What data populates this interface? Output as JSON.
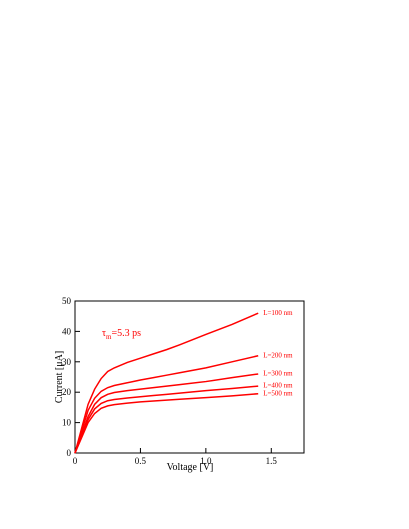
{
  "chart_data": {
    "type": "line",
    "annotation": {
      "symbol": "τ",
      "subscript": "m",
      "text": "=5.3 ps"
    },
    "x_label": "Voltage [V]",
    "y_label": "Current [μA]",
    "x": [
      0,
      0.05,
      0.1,
      0.15,
      0.2,
      0.25,
      0.3,
      0.4,
      0.5,
      0.6,
      0.7,
      0.8,
      1.0,
      1.2,
      1.4
    ],
    "series": [
      {
        "name": "L=100 nm",
        "color": "#ff0000",
        "values": [
          0,
          8,
          16,
          21,
          24.5,
          26.8,
          28,
          29.8,
          31.2,
          32.6,
          34,
          35.6,
          39,
          42.3,
          46
        ]
      },
      {
        "name": "L=200 nm",
        "color": "#ff0000",
        "values": [
          0,
          7,
          14,
          18,
          20.3,
          21.5,
          22.2,
          23.1,
          24,
          24.8,
          25.6,
          26.4,
          28,
          30,
          32
        ]
      },
      {
        "name": "L=300 nm",
        "color": "#ff0000",
        "values": [
          0,
          6,
          12,
          16,
          18.2,
          19.3,
          19.9,
          20.5,
          21,
          21.5,
          22,
          22.5,
          23.5,
          24.8,
          26
        ]
      },
      {
        "name": "L=400 nm",
        "color": "#ff0000",
        "values": [
          0,
          5.5,
          11,
          14.5,
          16.3,
          17.2,
          17.6,
          18.1,
          18.5,
          18.9,
          19.3,
          19.7,
          20.5,
          21.2,
          22
        ]
      },
      {
        "name": "L=500 nm",
        "color": "#ff0000",
        "values": [
          0,
          5,
          10,
          13,
          14.7,
          15.5,
          15.9,
          16.4,
          16.8,
          17.1,
          17.4,
          17.7,
          18.2,
          18.8,
          19.5
        ]
      }
    ],
    "xlim": [
      0,
      1.75
    ],
    "xticks": [
      0,
      0.5,
      {
        "value": 1,
        "label": "1.0"
      },
      1.5
    ],
    "ylim": [
      0,
      50
    ],
    "yticks": [
      0,
      10,
      20,
      30,
      40,
      50
    ]
  }
}
